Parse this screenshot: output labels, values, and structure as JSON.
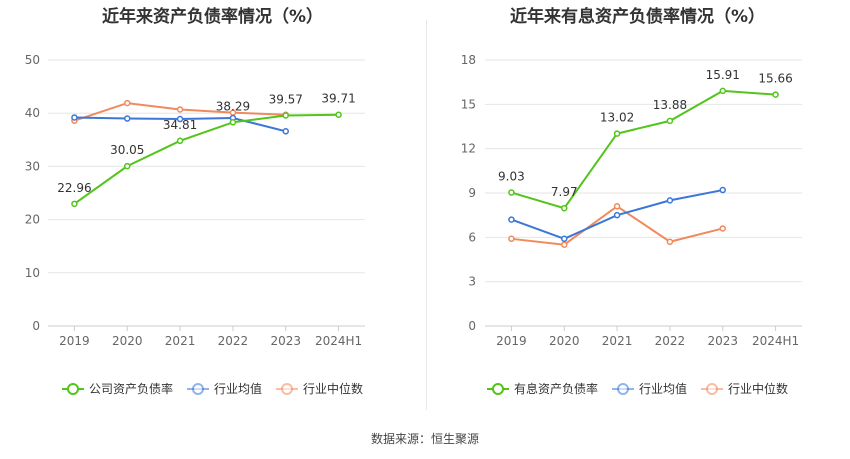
{
  "source": "数据来源：恒生聚源",
  "chart_data": [
    {
      "type": "line",
      "title": "近年来资产负债率情况（%）",
      "categories": [
        "2019",
        "2020",
        "2021",
        "2022",
        "2023",
        "2024H1"
      ],
      "ylim": [
        0,
        50
      ],
      "yticks": [
        0,
        10,
        20,
        30,
        40,
        50
      ],
      "grid": true,
      "legend_position": "bottom",
      "series": [
        {
          "name": "公司资产负债率",
          "color": "#52c41a",
          "values": [
            22.96,
            30.05,
            34.81,
            38.29,
            39.57,
            39.71
          ],
          "labels": [
            "22.96",
            "30.05",
            "34.81",
            "38.29",
            "39.57",
            "39.71"
          ]
        },
        {
          "name": "行业均值",
          "color": "#3a77d9",
          "values": [
            39.2,
            39.0,
            38.9,
            39.1,
            36.6,
            null
          ]
        },
        {
          "name": "行业中位数",
          "color": "#f08a5d",
          "values": [
            38.6,
            41.9,
            40.7,
            40.1,
            39.7,
            null
          ]
        }
      ]
    },
    {
      "type": "line",
      "title": "近年来有息资产负债率情况（%）",
      "categories": [
        "2019",
        "2020",
        "2021",
        "2022",
        "2023",
        "2024H1"
      ],
      "ylim": [
        0,
        18
      ],
      "yticks": [
        0,
        3,
        6,
        9,
        12,
        15,
        18
      ],
      "grid": true,
      "legend_position": "bottom",
      "series": [
        {
          "name": "有息资产负债率",
          "color": "#52c41a",
          "values": [
            9.03,
            7.97,
            13.02,
            13.88,
            15.91,
            15.66
          ],
          "labels": [
            "9.03",
            "7.97",
            "13.02",
            "13.88",
            "15.91",
            "15.66"
          ]
        },
        {
          "name": "行业均值",
          "color": "#3a77d9",
          "values": [
            7.2,
            5.9,
            7.5,
            8.5,
            9.2,
            null
          ]
        },
        {
          "name": "行业中位数",
          "color": "#f08a5d",
          "values": [
            5.9,
            5.5,
            8.1,
            5.7,
            6.6,
            null
          ]
        }
      ]
    }
  ]
}
